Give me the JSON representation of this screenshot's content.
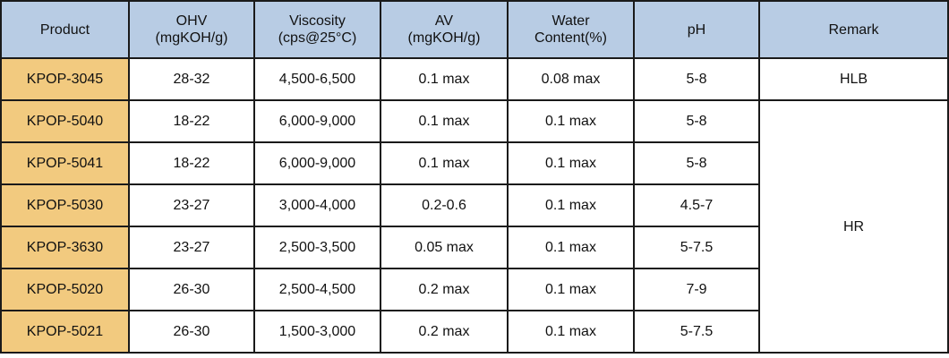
{
  "headers": {
    "product": "Product",
    "ohv_line1": "OHV",
    "ohv_line2": "(mgKOH/g)",
    "viscosity_line1": "Viscosity",
    "viscosity_line2": "(cps@25°C)",
    "av_line1": "AV",
    "av_line2": "(mgKOH/g)",
    "water_line1": "Water",
    "water_line2": "Content(%)",
    "ph": "pH",
    "remark": "Remark"
  },
  "rows": [
    {
      "product": "KPOP-3045",
      "ohv": "28-32",
      "viscosity": "4,500-6,500",
      "av": "0.1  max",
      "water": "0.08  max",
      "ph": "5-8"
    },
    {
      "product": "KPOP-5040",
      "ohv": "18-22",
      "viscosity": "6,000-9,000",
      "av": "0.1  max",
      "water": "0.1  max",
      "ph": "5-8"
    },
    {
      "product": "KPOP-5041",
      "ohv": "18-22",
      "viscosity": "6,000-9,000",
      "av": "0.1  max",
      "water": "0.1  max",
      "ph": "5-8"
    },
    {
      "product": "KPOP-5030",
      "ohv": "23-27",
      "viscosity": "3,000-4,000",
      "av": "0.2-0.6",
      "water": "0.1  max",
      "ph": "4.5-7"
    },
    {
      "product": "KPOP-3630",
      "ohv": "23-27",
      "viscosity": "2,500-3,500",
      "av": "0.05  max",
      "water": "0.1  max",
      "ph": "5-7.5"
    },
    {
      "product": "KPOP-5020",
      "ohv": "26-30",
      "viscosity": "2,500-4,500",
      "av": "0.2  max",
      "water": "0.1  max",
      "ph": "7-9"
    },
    {
      "product": "KPOP-5021",
      "ohv": "26-30",
      "viscosity": "1,500-3,000",
      "av": "0.2  max",
      "water": "0.1  max",
      "ph": "5-7.5"
    }
  ],
  "remarks": {
    "hlb": "HLB",
    "hr": "HR"
  },
  "colors": {
    "header_bg": "#b8cce4",
    "product_bg": "#f2ca7f",
    "border": "#1a1a1a"
  }
}
